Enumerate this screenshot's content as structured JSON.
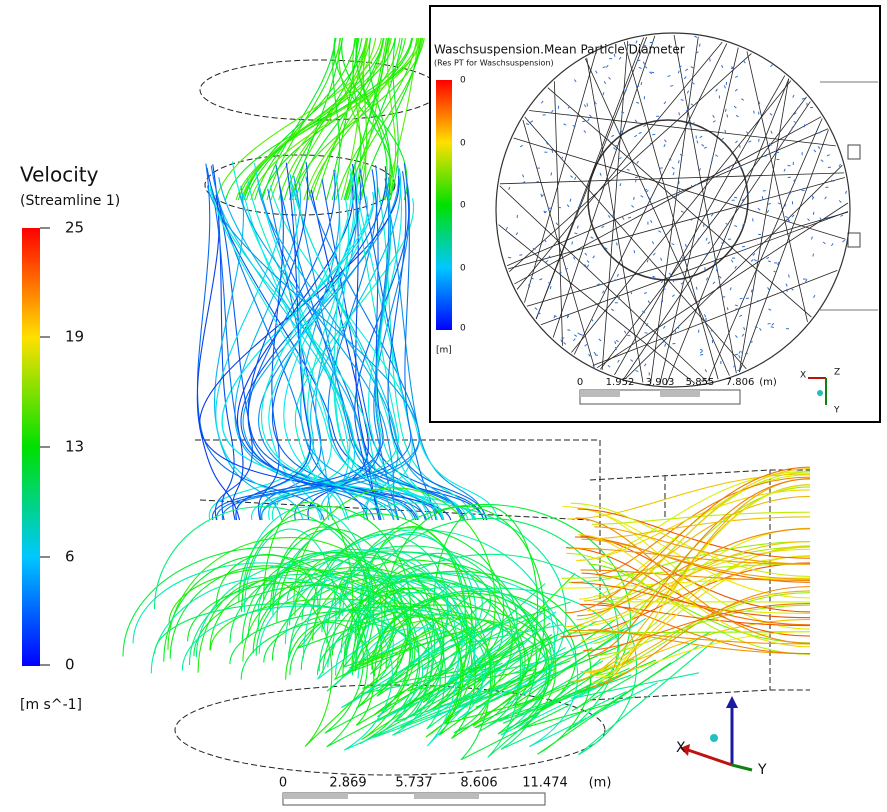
{
  "legend": {
    "title": "Velocity",
    "subtitle": "(Streamline 1)",
    "ticks": [
      "25",
      "19",
      "13",
      "6",
      "0"
    ],
    "unit": "[m s^-1]"
  },
  "scale_bar": {
    "labels": [
      "0",
      "2.869",
      "5.737",
      "8.606",
      "11.474"
    ],
    "unit": "(m)"
  },
  "axes": {
    "x": "X",
    "y": "Y"
  },
  "inset": {
    "title": "Waschsuspension.Mean Particle Diameter",
    "subtitle": "(Res PT for Waschsuspension)",
    "ticks": [
      "0",
      "0",
      "0",
      "0",
      "0"
    ],
    "unit": "[m]",
    "scale_bar": {
      "labels": [
        "0",
        "1.952",
        "3.903",
        "5.855",
        "7.806"
      ],
      "unit": "(m)"
    },
    "axes": {
      "x": "X",
      "y": "Y",
      "z": "Z"
    }
  }
}
